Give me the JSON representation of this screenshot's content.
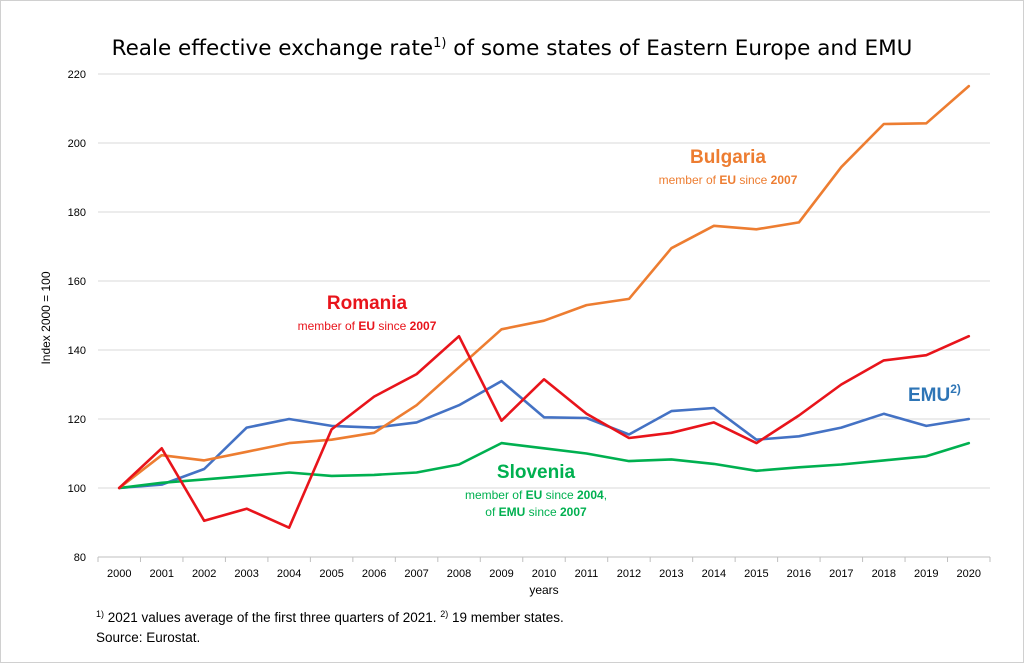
{
  "title": {
    "text_pre": "Reale effective exchange rate",
    "sup": "1)",
    "text_post": " of some states of Eastern Europe and EMU"
  },
  "footnote": {
    "sup1": "1)",
    "text1": " 2021 values average of the first three quarters of 2021. ",
    "sup2": "2)",
    "text2": " 19 member states.",
    "source": "Source: Eurostat."
  },
  "annotations": {
    "bulgaria": {
      "name": "Bulgaria",
      "sub_a": "member of ",
      "sub_b": "EU",
      "sub_c": " since ",
      "sub_d": "2007"
    },
    "romania": {
      "name": "Romania",
      "sub_a": "member of ",
      "sub_b": "EU",
      "sub_c": " since ",
      "sub_d": "2007"
    },
    "emu": {
      "name": "EMU",
      "sup": "2)"
    },
    "slovenia": {
      "name": "Slovenia",
      "line1_a": "member of ",
      "line1_b": "EU",
      "line1_c": " since ",
      "line1_d": "2004",
      "line1_e": ",",
      "line2_a": "of ",
      "line2_b": "EMU",
      "line2_c": " since ",
      "line2_d": "2007"
    }
  },
  "chart_data": {
    "type": "line",
    "title": "Reale effective exchange rate1) of some states of Eastern Europe and EMU",
    "xlabel": "years",
    "ylabel": "Index 2000 = 100",
    "ylim": [
      80,
      220
    ],
    "yticks": [
      80,
      100,
      120,
      140,
      160,
      180,
      200,
      220
    ],
    "grid": true,
    "categories": [
      "2000",
      "2001",
      "2002",
      "2003",
      "2004",
      "2005",
      "2006",
      "2007",
      "2008",
      "2009",
      "2010",
      "2011",
      "2012",
      "2013",
      "2014",
      "2015",
      "2016",
      "2017",
      "2018",
      "2019",
      "2020"
    ],
    "series": [
      {
        "name": "Bulgaria",
        "color": "#ED7D31",
        "values": [
          100,
          109.5,
          108,
          110.5,
          113,
          114,
          116,
          124,
          135,
          146,
          148.5,
          153,
          154.8,
          169.5,
          176,
          175,
          177,
          193,
          205.5,
          205.7,
          216.5
        ]
      },
      {
        "name": "Romania",
        "color": "#E8141B",
        "values": [
          100,
          111.5,
          90.5,
          94,
          88.5,
          117,
          126.5,
          133,
          144,
          119.5,
          131.5,
          121.5,
          114.5,
          116,
          119,
          113,
          121,
          130,
          137,
          138.5,
          144
        ]
      },
      {
        "name": "EMU",
        "color": "#4472C4",
        "values": [
          100,
          101,
          105.5,
          117.5,
          120,
          118,
          117.5,
          119,
          124,
          131,
          120.5,
          120.3,
          115.5,
          122.3,
          123.2,
          114,
          115,
          117.5,
          121.5,
          118,
          120
        ]
      },
      {
        "name": "Slovenia",
        "color": "#00B050",
        "values": [
          100,
          101.5,
          102.5,
          103.5,
          104.5,
          103.5,
          103.8,
          104.5,
          106.8,
          113,
          111.5,
          110,
          107.8,
          108.3,
          107,
          105,
          106,
          106.8,
          108,
          109.2,
          113
        ]
      }
    ]
  }
}
